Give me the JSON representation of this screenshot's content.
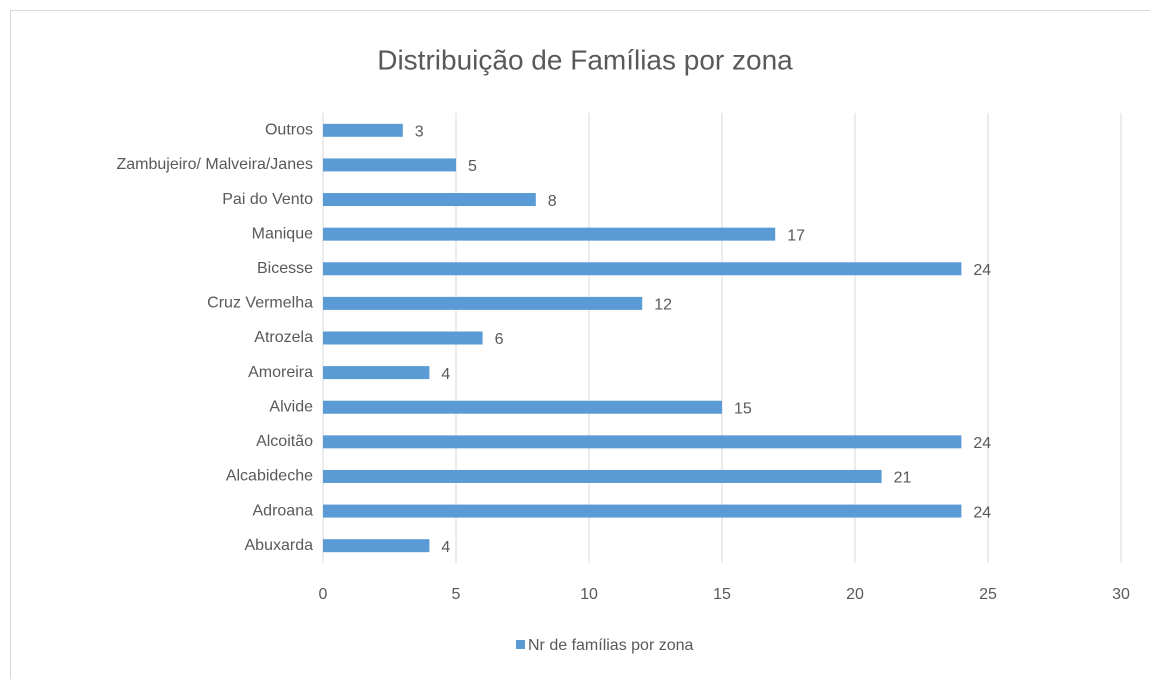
{
  "chart_data": {
    "type": "hbar",
    "title": "Distribuição de Famílias por zona",
    "categories": [
      "Abuxarda",
      "Adroana",
      "Alcabideche",
      "Alcoitão",
      "Alvide",
      "Amoreira",
      "Atrozela",
      "Cruz Vermelha",
      "Bicesse",
      "Manique",
      "Pai do Vento",
      "Zambujeiro/ Malveira/Janes",
      "Outros"
    ],
    "series": [
      {
        "name": "Nr de famílias por zona",
        "color": "#5b9bd5",
        "values": [
          4,
          24,
          21,
          24,
          15,
          4,
          6,
          12,
          24,
          17,
          8,
          5,
          3
        ]
      }
    ],
    "xlim": [
      0,
      30
    ],
    "xticks": [
      0,
      5,
      10,
      15,
      20,
      25,
      30
    ],
    "grid": true,
    "legend": "bottom"
  }
}
